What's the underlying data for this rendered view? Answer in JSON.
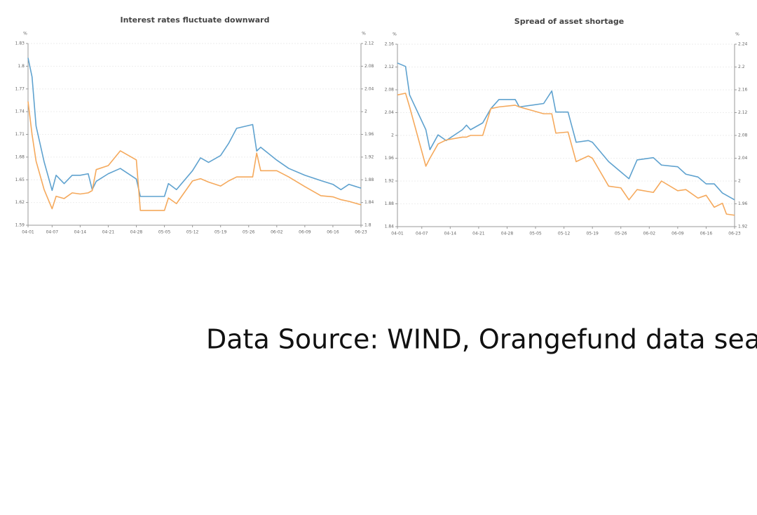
{
  "chart_data": [
    {
      "type": "line",
      "title": "Interest rates fluctuate downward",
      "ylabel": "%",
      "y2label": "%",
      "x": [
        "04-01",
        "04-02",
        "04-03",
        "04-05",
        "04-07",
        "04-08",
        "04-10",
        "04-12",
        "04-14",
        "04-16",
        "04-17",
        "04-18",
        "04-21",
        "04-24",
        "04-28",
        "04-29",
        "05-05",
        "05-06",
        "05-08",
        "05-12",
        "05-14",
        "05-16",
        "05-19",
        "05-21",
        "05-23",
        "05-27",
        "05-28",
        "05-29",
        "06-02",
        "06-05",
        "06-09",
        "06-13",
        "06-16",
        "06-18",
        "06-20",
        "06-23"
      ],
      "xticks": [
        "04-01",
        "04-07",
        "04-14",
        "04-21",
        "04-28",
        "05-05",
        "05-12",
        "05-19",
        "05-26",
        "06-02",
        "06-09",
        "06-16",
        "06-23"
      ],
      "ylim": [
        1.59,
        1.83
      ],
      "yticks": [
        1.59,
        1.62,
        1.65,
        1.68,
        1.71,
        1.74,
        1.77,
        1.8,
        1.83
      ],
      "y2lim": [
        1.8,
        2.12
      ],
      "y2ticks": [
        1.8,
        1.84,
        1.88,
        1.92,
        1.96,
        2,
        2.04,
        2.08,
        2.12
      ],
      "grid": true,
      "series": [
        {
          "color": "#5fa2cf",
          "values": [
            1.811,
            1.786,
            1.721,
            1.674,
            1.636,
            1.656,
            1.645,
            1.656,
            1.656,
            1.658,
            1.637,
            1.648,
            1.658,
            1.665,
            1.651,
            1.628,
            1.628,
            1.645,
            1.637,
            1.662,
            1.679,
            1.673,
            1.682,
            1.698,
            1.718,
            1.723,
            1.688,
            1.693,
            1.676,
            1.665,
            1.656,
            1.649,
            1.644,
            1.637,
            1.644,
            1.639
          ]
        },
        {
          "color": "#f5a95c",
          "axis": "y2",
          "values": [
            2.018,
            1.96,
            1.913,
            1.863,
            1.829,
            1.851,
            1.847,
            1.857,
            1.855,
            1.857,
            1.861,
            1.898,
            1.905,
            1.931,
            1.915,
            1.826,
            1.826,
            1.848,
            1.838,
            1.878,
            1.882,
            1.876,
            1.869,
            1.878,
            1.885,
            1.885,
            1.927,
            1.896,
            1.896,
            1.885,
            1.868,
            1.852,
            1.85,
            1.845,
            1.842,
            1.836
          ]
        }
      ]
    },
    {
      "type": "line",
      "title": "Spread of asset shortage",
      "ylabel": "%",
      "y2label": "%",
      "x": [
        "04-01",
        "04-03",
        "04-04",
        "04-08",
        "04-09",
        "04-11",
        "04-13",
        "04-17",
        "04-18",
        "04-19",
        "04-22",
        "04-24",
        "04-26",
        "04-30",
        "05-01",
        "05-07",
        "05-09",
        "05-10",
        "05-13",
        "05-15",
        "05-18",
        "05-19",
        "05-23",
        "05-26",
        "05-28",
        "05-30",
        "06-03",
        "06-05",
        "06-09",
        "06-11",
        "06-14",
        "06-16",
        "06-18",
        "06-20",
        "06-21",
        "06-23"
      ],
      "xticks": [
        "04-01",
        "04-07",
        "04-14",
        "04-21",
        "04-28",
        "05-05",
        "05-12",
        "05-19",
        "05-26",
        "06-02",
        "06-09",
        "06-16",
        "06-23"
      ],
      "ylim": [
        1.84,
        2.16
      ],
      "yticks": [
        1.84,
        1.88,
        1.92,
        1.96,
        2,
        2.04,
        2.08,
        2.12,
        2.16
      ],
      "y2lim": [
        1.92,
        2.24
      ],
      "y2ticks": [
        1.92,
        1.96,
        2,
        2.04,
        2.08,
        2.12,
        2.16,
        2.2,
        2.24
      ],
      "grid": true,
      "series": [
        {
          "color": "#5fa2cf",
          "values": [
            2.127,
            2.121,
            2.071,
            2.01,
            1.975,
            2.001,
            1.991,
            2.01,
            2.018,
            2.01,
            2.022,
            2.047,
            2.063,
            2.063,
            2.05,
            2.056,
            2.078,
            2.041,
            2.041,
            1.988,
            1.991,
            1.988,
            1.954,
            1.936,
            1.924,
            1.957,
            1.961,
            1.948,
            1.945,
            1.932,
            1.927,
            1.915,
            1.915,
            1.899,
            1.895,
            1.887
          ]
        },
        {
          "color": "#f5a95c",
          "axis": "y2",
          "values": [
            2.151,
            2.154,
            2.13,
            2.026,
            2.04,
            2.065,
            2.072,
            2.077,
            2.077,
            2.08,
            2.08,
            2.127,
            2.13,
            2.133,
            2.13,
            2.118,
            2.118,
            2.084,
            2.086,
            2.034,
            2.044,
            2.04,
            1.991,
            1.988,
            1.967,
            1.985,
            1.98,
            2.0,
            1.983,
            1.985,
            1.97,
            1.975,
            1.954,
            1.961,
            1.942,
            1.94
          ]
        }
      ]
    }
  ],
  "source": "Data Source: WIND, Orangefund data sea"
}
